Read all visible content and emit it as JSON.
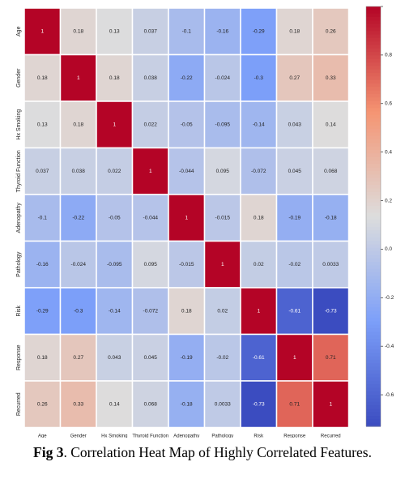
{
  "chart_data": {
    "type": "heatmap",
    "labels": [
      "Age",
      "Gender",
      "Hx Smoking",
      "Thyroid Function",
      "Adenopathy",
      "Pathology",
      "Risk",
      "Response",
      "Recurred"
    ],
    "values": [
      [
        1,
        0.18,
        0.13,
        0.037,
        -0.1,
        -0.16,
        -0.29,
        0.18,
        0.26
      ],
      [
        0.18,
        1,
        0.18,
        0.038,
        -0.22,
        -0.024,
        -0.3,
        0.27,
        0.33
      ],
      [
        0.13,
        0.18,
        1,
        0.022,
        -0.05,
        -0.095,
        -0.14,
        0.043,
        0.14
      ],
      [
        0.037,
        0.038,
        0.022,
        1,
        -0.044,
        0.095,
        -0.072,
        0.045,
        0.068
      ],
      [
        -0.1,
        -0.22,
        -0.05,
        -0.044,
        1,
        -0.015,
        0.18,
        -0.19,
        -0.18
      ],
      [
        -0.16,
        -0.024,
        -0.095,
        0.095,
        -0.015,
        1,
        0.02,
        -0.02,
        0.0033
      ],
      [
        -0.29,
        -0.3,
        -0.14,
        -0.072,
        0.18,
        0.02,
        1,
        -0.61,
        -0.73
      ],
      [
        0.18,
        0.27,
        0.043,
        0.045,
        -0.19,
        -0.02,
        -0.61,
        1,
        0.71
      ],
      [
        0.26,
        0.33,
        0.14,
        0.068,
        -0.18,
        0.0033,
        -0.73,
        0.71,
        1
      ]
    ],
    "colormap": "coolwarm",
    "vmin": -0.73,
    "vmax": 1,
    "colorbar_ticks": [
      1.0,
      0.8,
      0.6,
      0.4,
      0.2,
      0.0,
      -0.2,
      -0.4,
      -0.6
    ],
    "colorbar_tick_labels": [
      "",
      "0.8",
      "0.6",
      "0.4",
      "0.2",
      "0.0",
      "-0.2",
      "-0.4",
      "-0.6"
    ],
    "annotations": true
  },
  "caption": {
    "label": "Fig 3",
    "text": ". Correlation Heat Map of Highly Correlated Features."
  }
}
